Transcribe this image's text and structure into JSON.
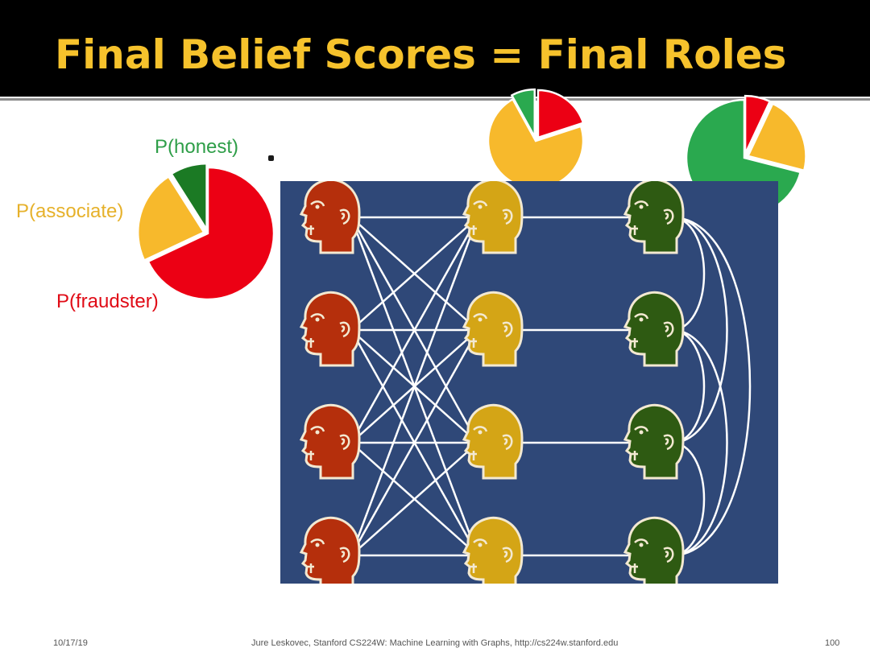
{
  "slide": {
    "title": "Final Belief Scores = Final Roles"
  },
  "legend": {
    "honest_label": "P(honest)",
    "associate_label": "P(associate)",
    "fraudster_label": "P(fraudster)"
  },
  "colors": {
    "title": "#f6c22c",
    "fraudster": "#ec0014",
    "associate": "#f7b92c",
    "honest": "#2aa94f",
    "honest_dark": "#1b7a24",
    "network_bg": "#2f4878",
    "fraud_head": "#b52f0c",
    "assoc_head": "#d4a516",
    "honest_head": "#2e5a12"
  },
  "pies": [
    {
      "name": "legend-pie",
      "fraudster": 0.68,
      "associate": 0.23,
      "honest": 0.09
    },
    {
      "name": "associate-pie",
      "fraudster": 0.2,
      "associate": 0.72,
      "honest": 0.08
    },
    {
      "name": "honest-pie",
      "fraudster": 0.07,
      "associate": 0.22,
      "honest": 0.71
    }
  ],
  "network": {
    "columns": [
      "fraudster",
      "associate",
      "honest"
    ],
    "nodes_per_column": 4
  },
  "footer": {
    "date": "10/17/19",
    "credit": "Jure Leskovec, Stanford CS224W: Machine Learning with Graphs, http://cs224w.stanford.edu",
    "page": "100"
  }
}
